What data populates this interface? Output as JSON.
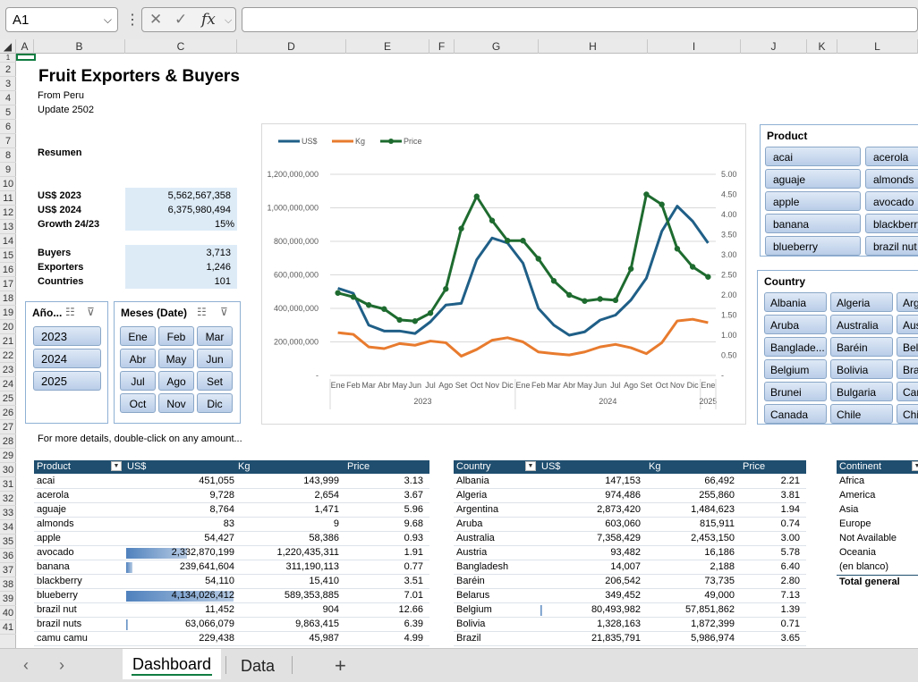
{
  "namebox": {
    "value": "A1"
  },
  "formula_bar": {
    "fx_label": "fx",
    "value": ""
  },
  "columns": [
    "A",
    "B",
    "C",
    "D",
    "E",
    "F",
    "G",
    "H",
    "I",
    "J",
    "K",
    "L"
  ],
  "rows": [
    "1",
    "2",
    "3",
    "4",
    "5",
    "6",
    "7",
    "8",
    "9",
    "10",
    "11",
    "12",
    "13",
    "14",
    "15",
    "16",
    "17",
    "18",
    "19",
    "20",
    "21",
    "22",
    "23",
    "24",
    "25",
    "26",
    "27",
    "28",
    "29",
    "30",
    "31",
    "32",
    "33",
    "34",
    "35",
    "36",
    "37",
    "38",
    "39",
    "40",
    "41"
  ],
  "header": {
    "title": "Fruit Exporters & Buyers",
    "subtitle": "From Peru",
    "update": "Update 2502"
  },
  "summary": {
    "label": "Resumen",
    "kpis": [
      {
        "label": "US$ 2023",
        "value": "5,562,567,358"
      },
      {
        "label": "US$ 2024",
        "value": "6,375,980,494"
      },
      {
        "label": "Growth 24/23",
        "value": "15%"
      }
    ],
    "counts": [
      {
        "label": "Buyers",
        "value": "3,713"
      },
      {
        "label": "Exporters",
        "value": "1,246"
      },
      {
        "label": "Countries",
        "value": "101"
      }
    ]
  },
  "year_slicer": {
    "title": "Año...",
    "items": [
      "2023",
      "2024",
      "2025"
    ]
  },
  "month_slicer": {
    "title": "Meses (Date)",
    "items": [
      "Ene",
      "Feb",
      "Mar",
      "Abr",
      "May",
      "Jun",
      "Jul",
      "Ago",
      "Set",
      "Oct",
      "Nov",
      "Dic"
    ]
  },
  "product_slicer": {
    "title": "Product",
    "items": [
      "acai",
      "acerola",
      "aguaje",
      "almonds",
      "apple",
      "avocado",
      "banana",
      "blackberry",
      "blueberry",
      "brazil nut"
    ]
  },
  "country_slicer": {
    "title": "Country",
    "items": [
      "Albania",
      "Algeria",
      "Arg",
      "Aruba",
      "Australia",
      "Aus",
      "Banglade...",
      "Baréin",
      "Bel",
      "Belgium",
      "Bolivia",
      "Bra",
      "Brunei",
      "Bulgaria",
      "Car",
      "Canada",
      "Chile",
      "Chi"
    ]
  },
  "note": "For more details, double-click on any amount...",
  "chart_data": {
    "type": "line",
    "title": "",
    "categories": [
      "Ene",
      "Feb",
      "Mar",
      "Abr",
      "May",
      "Jun",
      "Jul",
      "Ago",
      "Set",
      "Oct",
      "Nov",
      "Dic",
      "Ene",
      "Feb",
      "Mar",
      "Abr",
      "May",
      "Jun",
      "Jul",
      "Ago",
      "Set",
      "Oct",
      "Nov",
      "Dic",
      "Ene"
    ],
    "year_groups": [
      {
        "label": "2023",
        "start": 0,
        "end": 11
      },
      {
        "label": "2024",
        "start": 12,
        "end": 23
      },
      {
        "label": "2025",
        "start": 24,
        "end": 24
      }
    ],
    "series": [
      {
        "name": "US$",
        "axis": "left",
        "color": "#1f5f87",
        "values": [
          520000000,
          490000000,
          300000000,
          265000000,
          265000000,
          250000000,
          320000000,
          420000000,
          430000000,
          690000000,
          820000000,
          790000000,
          670000000,
          400000000,
          300000000,
          240000000,
          260000000,
          330000000,
          360000000,
          450000000,
          580000000,
          860000000,
          1010000000,
          920000000,
          790000000
        ]
      },
      {
        "name": "Kg",
        "axis": "left",
        "color": "#e87b2e",
        "values": [
          255000000,
          245000000,
          170000000,
          160000000,
          190000000,
          180000000,
          205000000,
          195000000,
          115000000,
          155000000,
          210000000,
          225000000,
          200000000,
          140000000,
          130000000,
          122000000,
          140000000,
          170000000,
          185000000,
          165000000,
          130000000,
          195000000,
          325000000,
          335000000,
          315000000
        ]
      },
      {
        "name": "Price",
        "axis": "right",
        "color": "#1e6b2f",
        "values": [
          2.05,
          1.95,
          1.75,
          1.65,
          1.38,
          1.35,
          1.55,
          2.15,
          3.65,
          4.45,
          3.85,
          3.35,
          3.35,
          2.9,
          2.35,
          2.0,
          1.85,
          1.9,
          1.87,
          2.65,
          4.5,
          4.25,
          3.15,
          2.7,
          2.45
        ]
      }
    ],
    "y_left": {
      "min": 0,
      "max": 1200000000,
      "ticks": [
        "-",
        "200,000,000",
        "400,000,000",
        "600,000,000",
        "800,000,000",
        "1,000,000,000",
        "1,200,000,000"
      ]
    },
    "y_right": {
      "min": 0,
      "max": 5,
      "ticks": [
        "-",
        "0.50",
        "1.00",
        "1.50",
        "2.00",
        "2.50",
        "3.00",
        "3.50",
        "4.00",
        "4.50",
        "5.00"
      ]
    },
    "legend": "top-left",
    "grid": true
  },
  "product_table": {
    "headers": [
      "Product",
      "US$",
      "Kg",
      "Price"
    ],
    "rows": [
      {
        "name": "acai",
        "usd": "451,055",
        "kg": "143,999",
        "price": "3.13",
        "bar": 0
      },
      {
        "name": "acerola",
        "usd": "9,728",
        "kg": "2,654",
        "price": "3.67",
        "bar": 0
      },
      {
        "name": "aguaje",
        "usd": "8,764",
        "kg": "1,471",
        "price": "5.96",
        "bar": 0
      },
      {
        "name": "almonds",
        "usd": "83",
        "kg": "9",
        "price": "9.68",
        "bar": 0
      },
      {
        "name": "apple",
        "usd": "54,427",
        "kg": "58,386",
        "price": "0.93",
        "bar": 0
      },
      {
        "name": "avocado",
        "usd": "2,332,870,199",
        "kg": "1,220,435,311",
        "price": "1.91",
        "bar": 0.564
      },
      {
        "name": "banana",
        "usd": "239,641,604",
        "kg": "311,190,113",
        "price": "0.77",
        "bar": 0.058
      },
      {
        "name": "blackberry",
        "usd": "54,110",
        "kg": "15,410",
        "price": "3.51",
        "bar": 0
      },
      {
        "name": "blueberry",
        "usd": "4,134,026,412",
        "kg": "589,353,885",
        "price": "7.01",
        "bar": 1
      },
      {
        "name": "brazil nut",
        "usd": "11,452",
        "kg": "904",
        "price": "12.66",
        "bar": 0
      },
      {
        "name": "brazil nuts",
        "usd": "63,066,079",
        "kg": "9,863,415",
        "price": "6.39",
        "bar": 0.015
      },
      {
        "name": "camu camu",
        "usd": "229,438",
        "kg": "45,987",
        "price": "4.99",
        "bar": 0
      }
    ]
  },
  "country_table": {
    "headers": [
      "Country",
      "US$",
      "Kg",
      "Price"
    ],
    "rows": [
      {
        "name": "Albania",
        "usd": "147,153",
        "kg": "66,492",
        "price": "2.21",
        "bar": 0
      },
      {
        "name": "Algeria",
        "usd": "974,486",
        "kg": "255,860",
        "price": "3.81",
        "bar": 0
      },
      {
        "name": "Argentina",
        "usd": "2,873,420",
        "kg": "1,484,623",
        "price": "1.94",
        "bar": 0
      },
      {
        "name": "Aruba",
        "usd": "603,060",
        "kg": "815,911",
        "price": "0.74",
        "bar": 0
      },
      {
        "name": "Australia",
        "usd": "7,358,429",
        "kg": "2,453,150",
        "price": "3.00",
        "bar": 0
      },
      {
        "name": "Austria",
        "usd": "93,482",
        "kg": "16,186",
        "price": "5.78",
        "bar": 0
      },
      {
        "name": "Bangladesh",
        "usd": "14,007",
        "kg": "2,188",
        "price": "6.40",
        "bar": 0
      },
      {
        "name": "Baréin",
        "usd": "206,542",
        "kg": "73,735",
        "price": "2.80",
        "bar": 0
      },
      {
        "name": "Belarus",
        "usd": "349,452",
        "kg": "49,000",
        "price": "7.13",
        "bar": 0
      },
      {
        "name": "Belgium",
        "usd": "80,493,982",
        "kg": "57,851,862",
        "price": "1.39",
        "bar": 0.02
      },
      {
        "name": "Bolivia",
        "usd": "1,328,163",
        "kg": "1,872,399",
        "price": "0.71",
        "bar": 0
      },
      {
        "name": "Brazil",
        "usd": "21,835,791",
        "kg": "5,986,974",
        "price": "3.65",
        "bar": 0
      }
    ]
  },
  "continent_table": {
    "header": "Continent",
    "rows": [
      "Africa",
      "America",
      "Asia",
      "Europe",
      "Not Available",
      "Oceania",
      "(en blanco)"
    ],
    "total": "Total general"
  },
  "tabs": {
    "active": "Dashboard",
    "other": "Data",
    "add": "+"
  }
}
